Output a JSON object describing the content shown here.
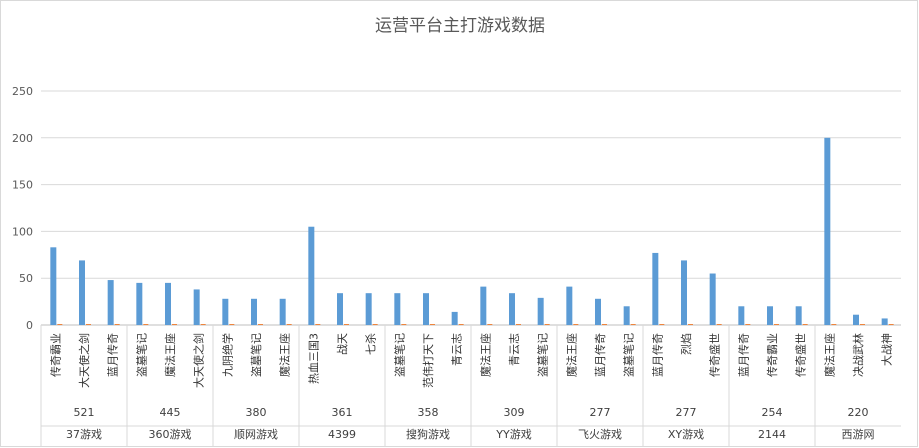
{
  "chart_data": {
    "type": "bar",
    "title": "运营平台主打游戏数据",
    "xlabel": "",
    "ylabel": "",
    "ylim": [
      0,
      250
    ],
    "yticks": [
      0,
      50,
      100,
      150,
      200,
      250
    ],
    "grid": true,
    "legend": "none",
    "colors": {
      "primary": "#5b9bd5",
      "secondary": "#ed7d31",
      "grid": "#d9d9d9",
      "axis": "#bfbfbf"
    },
    "groups": [
      {
        "platform": "37游戏",
        "total": "521",
        "games": [
          "传奇霸业",
          "大天使之剑",
          "蓝月传奇"
        ]
      },
      {
        "platform": "360游戏",
        "total": "445",
        "games": [
          "盗墓笔记",
          "魔法王座",
          "大天使之剑"
        ]
      },
      {
        "platform": "顺网游戏",
        "total": "380",
        "games": [
          "九阴绝学",
          "盗墓笔记",
          "魔法王座"
        ]
      },
      {
        "platform": "4399",
        "total": "361",
        "games": [
          "热血三国3",
          "战天",
          "七杀"
        ]
      },
      {
        "platform": "搜狗游戏",
        "total": "358",
        "games": [
          "盗墓笔记",
          "范伟打天下",
          "青云志"
        ]
      },
      {
        "platform": "YY游戏",
        "total": "309",
        "games": [
          "魔法王座",
          "青云志",
          "盗墓笔记"
        ]
      },
      {
        "platform": "飞火游戏",
        "total": "277",
        "games": [
          "魔法王座",
          "蓝月传奇",
          "盗墓笔记"
        ]
      },
      {
        "platform": "XY游戏",
        "total": "277",
        "games": [
          "蓝月传奇",
          "烈焰",
          "传奇盛世"
        ]
      },
      {
        "platform": "2144",
        "total": "254",
        "games": [
          "蓝月传奇",
          "传奇霸业",
          "传奇盛世"
        ]
      },
      {
        "platform": "西游网",
        "total": "220",
        "games": [
          "魔法王座",
          "决战武林",
          "大战神"
        ]
      }
    ],
    "series": [
      {
        "values": [
          83,
          69,
          48,
          45,
          45,
          38,
          28,
          28,
          28,
          105,
          34,
          34,
          34,
          34,
          14,
          41,
          34,
          29,
          41,
          28,
          20,
          77,
          69,
          55,
          20,
          20,
          20,
          200,
          11,
          7
        ]
      },
      {
        "values": [
          1,
          1,
          1,
          1,
          1,
          1,
          1,
          1,
          1,
          1,
          1,
          1,
          1,
          1,
          1,
          1,
          1,
          1,
          1,
          1,
          1,
          1,
          1,
          1,
          1,
          1,
          1,
          1,
          1,
          1
        ]
      }
    ]
  }
}
